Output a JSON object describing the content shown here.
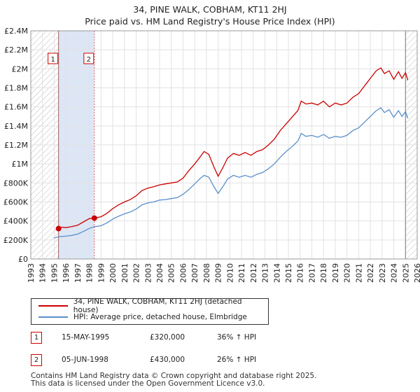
{
  "title_line1": "34, PINE WALK, COBHAM, KT11 2HJ",
  "title_line2": "Price paid vs. HM Land Registry's House Price Index (HPI)",
  "chart_data": {
    "type": "line",
    "title": "34, PINE WALK, COBHAM, KT11 2HJ — Price paid vs. HM Land Registry's House Price Index (HPI)",
    "xlim": [
      1993,
      2026
    ],
    "ylim": [
      0,
      2400000
    ],
    "x_ticks": [
      1993,
      1994,
      1995,
      1996,
      1997,
      1998,
      1999,
      2000,
      2001,
      2002,
      2003,
      2004,
      2005,
      2006,
      2007,
      2008,
      2009,
      2010,
      2011,
      2012,
      2013,
      2014,
      2015,
      2016,
      2017,
      2018,
      2019,
      2020,
      2021,
      2022,
      2023,
      2024,
      2025,
      2026
    ],
    "y_ticks": [
      0,
      200000,
      400000,
      600000,
      800000,
      1000000,
      1200000,
      1400000,
      1600000,
      1800000,
      2000000,
      2200000,
      2400000
    ],
    "y_tick_labels": [
      "£0",
      "£200K",
      "£400K",
      "£600K",
      "£800K",
      "£1M",
      "£1.2M",
      "£1.4M",
      "£1.6M",
      "£1.8M",
      "£2M",
      "£2.2M",
      "£2.4M"
    ],
    "hatched_regions": [
      [
        1993,
        1995.37
      ],
      [
        2025.0,
        2026
      ]
    ],
    "shaded_band": [
      1995.37,
      1998.43
    ],
    "series": [
      {
        "name": "34, PINE WALK, COBHAM, KT11 2HJ (detached house)",
        "color": "#cc0000",
        "points": [
          [
            1995.37,
            320000
          ],
          [
            1995.6,
            335000
          ],
          [
            1996.0,
            330000
          ],
          [
            1996.5,
            340000
          ],
          [
            1997.0,
            355000
          ],
          [
            1997.5,
            390000
          ],
          [
            1998.0,
            425000
          ],
          [
            1998.43,
            430000
          ],
          [
            1999.0,
            445000
          ],
          [
            1999.5,
            480000
          ],
          [
            2000.0,
            530000
          ],
          [
            2000.5,
            570000
          ],
          [
            2001.0,
            600000
          ],
          [
            2001.5,
            625000
          ],
          [
            2002.0,
            665000
          ],
          [
            2002.5,
            720000
          ],
          [
            2003.0,
            745000
          ],
          [
            2003.5,
            760000
          ],
          [
            2004.0,
            780000
          ],
          [
            2004.5,
            790000
          ],
          [
            2005.0,
            800000
          ],
          [
            2005.5,
            810000
          ],
          [
            2006.0,
            850000
          ],
          [
            2006.5,
            930000
          ],
          [
            2007.0,
            1000000
          ],
          [
            2007.5,
            1080000
          ],
          [
            2007.8,
            1130000
          ],
          [
            2008.2,
            1100000
          ],
          [
            2008.6,
            980000
          ],
          [
            2009.0,
            870000
          ],
          [
            2009.4,
            960000
          ],
          [
            2009.8,
            1060000
          ],
          [
            2010.3,
            1110000
          ],
          [
            2010.8,
            1090000
          ],
          [
            2011.3,
            1120000
          ],
          [
            2011.8,
            1090000
          ],
          [
            2012.3,
            1130000
          ],
          [
            2012.8,
            1150000
          ],
          [
            2013.3,
            1200000
          ],
          [
            2013.8,
            1260000
          ],
          [
            2014.3,
            1350000
          ],
          [
            2014.8,
            1420000
          ],
          [
            2015.3,
            1490000
          ],
          [
            2015.8,
            1560000
          ],
          [
            2016.1,
            1660000
          ],
          [
            2016.5,
            1630000
          ],
          [
            2017.0,
            1640000
          ],
          [
            2017.5,
            1620000
          ],
          [
            2018.0,
            1660000
          ],
          [
            2018.5,
            1600000
          ],
          [
            2019.0,
            1640000
          ],
          [
            2019.5,
            1620000
          ],
          [
            2020.0,
            1640000
          ],
          [
            2020.5,
            1700000
          ],
          [
            2021.0,
            1740000
          ],
          [
            2021.5,
            1820000
          ],
          [
            2022.0,
            1900000
          ],
          [
            2022.5,
            1980000
          ],
          [
            2022.9,
            2010000
          ],
          [
            2023.2,
            1950000
          ],
          [
            2023.6,
            1980000
          ],
          [
            2024.0,
            1890000
          ],
          [
            2024.4,
            1970000
          ],
          [
            2024.7,
            1900000
          ],
          [
            2025.0,
            1960000
          ],
          [
            2025.2,
            1880000
          ]
        ]
      },
      {
        "name": "HPI: Average price, detached house, Elmbridge",
        "color": "#5b8fc9",
        "points": [
          [
            1995.0,
            220000
          ],
          [
            1995.37,
            235000
          ],
          [
            1996.0,
            240000
          ],
          [
            1996.5,
            248000
          ],
          [
            1997.0,
            262000
          ],
          [
            1997.5,
            290000
          ],
          [
            1998.0,
            322000
          ],
          [
            1998.43,
            340000
          ],
          [
            1999.0,
            350000
          ],
          [
            1999.5,
            380000
          ],
          [
            2000.0,
            420000
          ],
          [
            2000.5,
            450000
          ],
          [
            2001.0,
            475000
          ],
          [
            2001.5,
            495000
          ],
          [
            2002.0,
            525000
          ],
          [
            2002.5,
            570000
          ],
          [
            2003.0,
            590000
          ],
          [
            2003.5,
            600000
          ],
          [
            2004.0,
            620000
          ],
          [
            2004.5,
            625000
          ],
          [
            2005.0,
            635000
          ],
          [
            2005.5,
            645000
          ],
          [
            2006.0,
            680000
          ],
          [
            2006.5,
            730000
          ],
          [
            2007.0,
            790000
          ],
          [
            2007.5,
            850000
          ],
          [
            2007.8,
            880000
          ],
          [
            2008.2,
            860000
          ],
          [
            2008.6,
            770000
          ],
          [
            2009.0,
            690000
          ],
          [
            2009.4,
            760000
          ],
          [
            2009.8,
            840000
          ],
          [
            2010.3,
            880000
          ],
          [
            2010.8,
            860000
          ],
          [
            2011.3,
            880000
          ],
          [
            2011.8,
            860000
          ],
          [
            2012.3,
            890000
          ],
          [
            2012.8,
            910000
          ],
          [
            2013.3,
            950000
          ],
          [
            2013.8,
            1000000
          ],
          [
            2014.3,
            1070000
          ],
          [
            2014.8,
            1130000
          ],
          [
            2015.3,
            1180000
          ],
          [
            2015.8,
            1240000
          ],
          [
            2016.1,
            1320000
          ],
          [
            2016.5,
            1290000
          ],
          [
            2017.0,
            1300000
          ],
          [
            2017.5,
            1280000
          ],
          [
            2018.0,
            1310000
          ],
          [
            2018.5,
            1270000
          ],
          [
            2019.0,
            1290000
          ],
          [
            2019.5,
            1280000
          ],
          [
            2020.0,
            1300000
          ],
          [
            2020.5,
            1350000
          ],
          [
            2021.0,
            1380000
          ],
          [
            2021.5,
            1440000
          ],
          [
            2022.0,
            1500000
          ],
          [
            2022.5,
            1560000
          ],
          [
            2022.9,
            1590000
          ],
          [
            2023.2,
            1540000
          ],
          [
            2023.6,
            1570000
          ],
          [
            2024.0,
            1490000
          ],
          [
            2024.4,
            1560000
          ],
          [
            2024.7,
            1500000
          ],
          [
            2025.0,
            1550000
          ],
          [
            2025.2,
            1480000
          ]
        ]
      }
    ],
    "sale_markers": [
      {
        "label": "1",
        "x": 1995.37,
        "price": 320000
      },
      {
        "label": "2",
        "x": 1998.43,
        "price": 430000
      }
    ]
  },
  "legend": {
    "series1": "34, PINE WALK, COBHAM, KT11 2HJ (detached house)",
    "series2": "HPI: Average price, detached house, Elmbridge",
    "series1_color": "#cc0000",
    "series2_color": "#5b8fc9"
  },
  "sales": [
    {
      "num": "1",
      "date": "15-MAY-1995",
      "price": "£320,000",
      "hpi": "36% ↑ HPI"
    },
    {
      "num": "2",
      "date": "05-JUN-1998",
      "price": "£430,000",
      "hpi": "26% ↑ HPI"
    }
  ],
  "footer": {
    "line1": "Contains HM Land Registry data © Crown copyright and database right 2025.",
    "line2": "This data is licensed under the Open Government Licence v3.0."
  }
}
